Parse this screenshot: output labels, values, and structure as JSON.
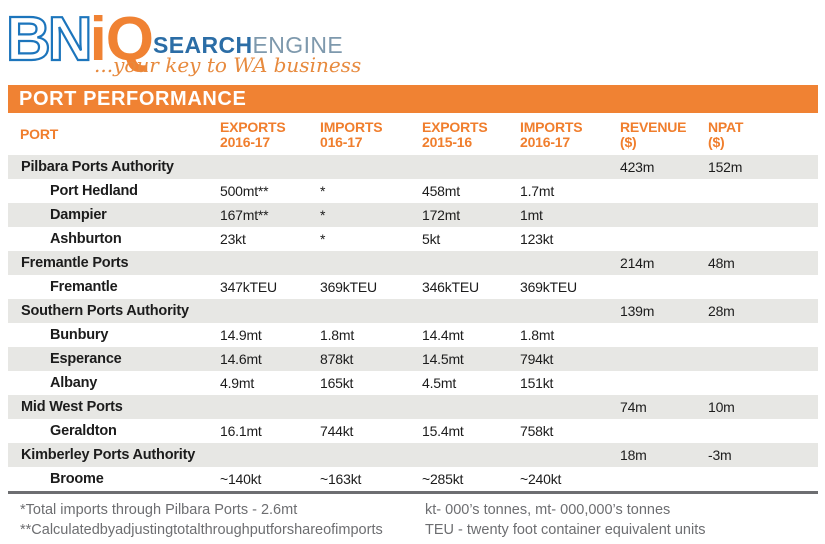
{
  "logo": {
    "mark_bn": "BN",
    "mark_iq": "iQ",
    "word_search": "SEARCH",
    "word_engine": "ENGINE",
    "tagline": "...your key to WA business"
  },
  "banner": {
    "title": "PORT PERFORMANCE"
  },
  "chart_data": {
    "type": "table",
    "title": "PORT PERFORMANCE",
    "columns": [
      {
        "line1": "PORT",
        "line2": ""
      },
      {
        "line1": "EXPORTS",
        "line2": "2016-17"
      },
      {
        "line1": "IMPORTS",
        "line2": "016-17"
      },
      {
        "line1": "EXPORTS",
        "line2": "2015-16"
      },
      {
        "line1": "IMPORTS",
        "line2": "2016-17"
      },
      {
        "line1": "REVENUE",
        "line2": "($)"
      },
      {
        "line1": "NPAT",
        "line2": "($)"
      }
    ],
    "rows": [
      {
        "name": "Pilbara Ports Authority",
        "group": true,
        "values": [
          "",
          "",
          "",
          "",
          "423m",
          "152m"
        ]
      },
      {
        "name": "Port Hedland",
        "group": false,
        "values": [
          "500mt**",
          "*",
          "458mt",
          "1.7mt",
          "",
          ""
        ]
      },
      {
        "name": "Dampier",
        "group": false,
        "values": [
          "167mt**",
          "*",
          "172mt",
          "1mt",
          "",
          ""
        ]
      },
      {
        "name": "Ashburton",
        "group": false,
        "values": [
          "23kt",
          "*",
          "5kt",
          "123kt",
          "",
          ""
        ]
      },
      {
        "name": "Fremantle Ports",
        "group": true,
        "values": [
          "",
          "",
          "",
          "",
          "214m",
          "48m"
        ]
      },
      {
        "name": "Fremantle",
        "group": false,
        "values": [
          "347kTEU",
          "369kTEU",
          "346kTEU",
          "369kTEU",
          "",
          ""
        ]
      },
      {
        "name": "Southern Ports Authority",
        "group": true,
        "values": [
          "",
          "",
          "",
          "",
          "139m",
          "28m"
        ]
      },
      {
        "name": "Bunbury",
        "group": false,
        "values": [
          "14.9mt",
          "1.8mt",
          "14.4mt",
          "1.8mt",
          "",
          ""
        ]
      },
      {
        "name": "Esperance",
        "group": false,
        "values": [
          "14.6mt",
          "878kt",
          "14.5mt",
          "794kt",
          "",
          ""
        ]
      },
      {
        "name": "Albany",
        "group": false,
        "values": [
          "4.9mt",
          "165kt",
          "4.5mt",
          "151kt",
          "",
          ""
        ]
      },
      {
        "name": "Mid West Ports",
        "group": true,
        "values": [
          "",
          "",
          "",
          "",
          "74m",
          "10m"
        ]
      },
      {
        "name": "Geraldton",
        "group": false,
        "values": [
          "16.1mt",
          "744kt",
          "15.4mt",
          "758kt",
          "",
          ""
        ]
      },
      {
        "name": "Kimberley Ports Authority",
        "group": true,
        "values": [
          "",
          "",
          "",
          "",
          "18m",
          "-3m"
        ]
      },
      {
        "name": "Broome",
        "group": false,
        "values": [
          "~140kt",
          "~163kt",
          "~285kt",
          "~240kt",
          "",
          ""
        ]
      }
    ],
    "notes": {
      "left": [
        "*Total imports through Pilbara Ports - 2.6mt",
        "**Calculatedbyadjustingtotalthroughputforshareofimports"
      ],
      "right": [
        "kt- 000’s tonnes, mt- 000,000’s tonnes",
        "TEU - twenty foot container equivalent units"
      ]
    },
    "layout": {
      "striping": "alternate starting gray on first row",
      "grid": "off"
    }
  },
  "colors": {
    "banner_orange": "#f08233",
    "header_text_orange": "#f07e2d",
    "logo_blue": "#1c75bc",
    "search_blue": "#2b6da6",
    "engine_gray": "#7e99ad",
    "tagline_orange": "#e78a3e",
    "stripe_gray": "#e7e7e4",
    "body_text": "#1c1c1c",
    "note_gray": "#6d6e71"
  }
}
